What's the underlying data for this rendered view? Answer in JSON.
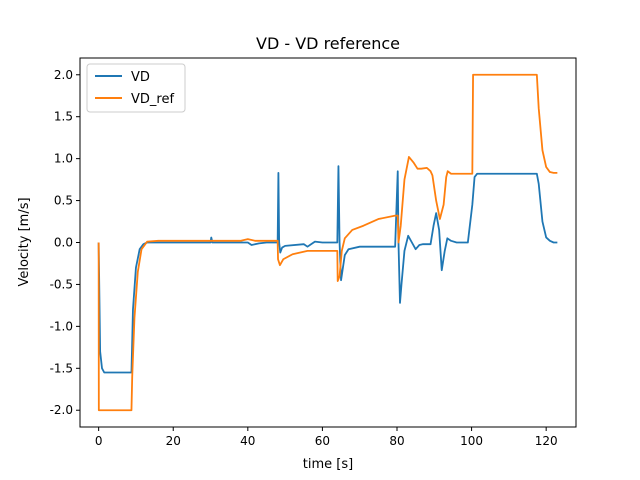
{
  "chart_data": {
    "type": "line",
    "title": "VD - VD reference",
    "xlabel": "time [s]",
    "ylabel": "Velocity [m/s]",
    "xlim": [
      -5,
      128
    ],
    "ylim": [
      -2.2,
      2.2
    ],
    "xticks": [
      0,
      20,
      40,
      60,
      80,
      100,
      120
    ],
    "yticks": [
      -2.0,
      -1.5,
      -1.0,
      -0.5,
      0.0,
      0.5,
      1.0,
      1.5,
      2.0
    ],
    "grid": false,
    "legend_position": "top-left",
    "series": [
      {
        "name": "VD",
        "color": "#1f77b4",
        "x": [
          0,
          0.4,
          0.9,
          1.5,
          2.5,
          5,
          8.8,
          9.2,
          10,
          11,
          12,
          13,
          15,
          18,
          25,
          30,
          30.2,
          30.5,
          35,
          40,
          41,
          43,
          45,
          48,
          48.2,
          48.4,
          48.7,
          49.2,
          50,
          55,
          56,
          57,
          58,
          60,
          64,
          64.3,
          64.6,
          65,
          65.5,
          66,
          67,
          70,
          73,
          78,
          79.5,
          80.2,
          80.4,
          80.8,
          81.2,
          82,
          83,
          84,
          85,
          86,
          87,
          88,
          89,
          89.8,
          90.5,
          91.3,
          92,
          92.8,
          93.5,
          94.5,
          96,
          99,
          100.2,
          100.8,
          101.5,
          103,
          110,
          114,
          117.5,
          118,
          119,
          120,
          121,
          122,
          123
        ],
        "y": [
          0.0,
          -1.3,
          -1.5,
          -1.55,
          -1.55,
          -1.55,
          -1.55,
          -0.8,
          -0.3,
          -0.08,
          -0.02,
          0.0,
          0.0,
          0.0,
          0.0,
          0.0,
          0.06,
          0.0,
          0.0,
          0.0,
          -0.03,
          -0.01,
          0.0,
          0.0,
          0.83,
          0.0,
          -0.12,
          -0.06,
          -0.04,
          -0.02,
          -0.05,
          -0.02,
          0.01,
          0.0,
          0.0,
          0.91,
          0.0,
          -0.45,
          -0.3,
          -0.15,
          -0.08,
          -0.05,
          -0.05,
          -0.05,
          -0.05,
          0.85,
          0.0,
          -0.72,
          -0.5,
          -0.1,
          0.08,
          0.0,
          -0.08,
          -0.03,
          -0.02,
          -0.02,
          -0.02,
          0.2,
          0.35,
          0.15,
          -0.33,
          -0.1,
          0.05,
          0.02,
          0.0,
          0.0,
          0.45,
          0.78,
          0.82,
          0.82,
          0.82,
          0.82,
          0.82,
          0.7,
          0.25,
          0.06,
          0.02,
          0.0,
          0.0
        ]
      },
      {
        "name": "VD_ref",
        "color": "#ff7f0e",
        "x": [
          0,
          0.05,
          0.2,
          0.6,
          4,
          8.8,
          9,
          9.6,
          10.5,
          11.5,
          13,
          16,
          20,
          30,
          38,
          40,
          42,
          44,
          48,
          48.1,
          48.6,
          49.5,
          52,
          56,
          60,
          64,
          64.1,
          64.6,
          65.2,
          66,
          68,
          71,
          75,
          79.5,
          80.2,
          80.4,
          81,
          82,
          83.2,
          84.5,
          85.5,
          86.5,
          88,
          89,
          89.5,
          90.5,
          91.5,
          92.5,
          93.2,
          93.6,
          94.5,
          96,
          99,
          100.2,
          100.4,
          101,
          110,
          117.5,
          118,
          119,
          120,
          121,
          122,
          123
        ],
        "y": [
          0.0,
          -2.0,
          -2.0,
          -2.0,
          -2.0,
          -2.0,
          -1.6,
          -0.9,
          -0.35,
          -0.08,
          0.01,
          0.02,
          0.02,
          0.02,
          0.02,
          0.04,
          0.02,
          0.02,
          0.02,
          -0.2,
          -0.27,
          -0.2,
          -0.14,
          -0.1,
          -0.1,
          -0.1,
          -0.46,
          -0.4,
          -0.1,
          0.05,
          0.15,
          0.2,
          0.28,
          0.32,
          0.32,
          0.0,
          0.2,
          0.75,
          1.02,
          0.95,
          0.88,
          0.88,
          0.89,
          0.85,
          0.8,
          0.5,
          0.28,
          0.45,
          0.78,
          0.85,
          0.82,
          0.82,
          0.82,
          0.82,
          2.0,
          2.0,
          2.0,
          2.0,
          1.6,
          1.1,
          0.9,
          0.84,
          0.83,
          0.83
        ]
      }
    ]
  }
}
